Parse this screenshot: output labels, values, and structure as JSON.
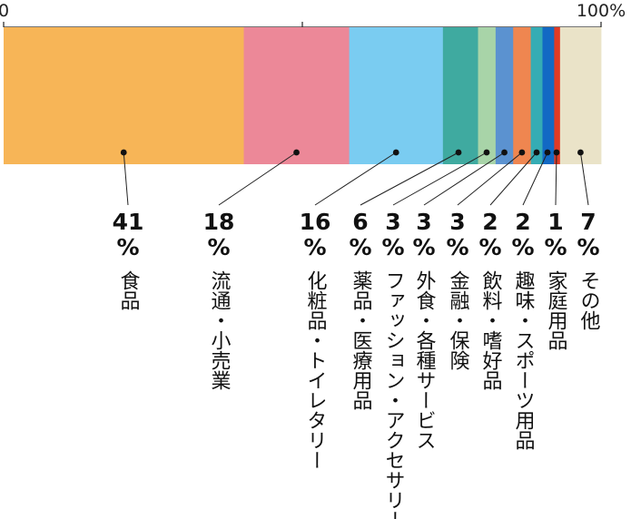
{
  "chart_data": {
    "type": "bar",
    "orientation": "horizontal-stacked-100",
    "axis": {
      "tick_labels": [
        "0",
        "100%"
      ],
      "range": [
        0,
        100
      ]
    },
    "segments": [
      {
        "label": "食品",
        "value": 41,
        "value_text": "41",
        "unit": "%",
        "color": "#F7B557"
      },
      {
        "label": "流通・小売業",
        "value": 18,
        "value_text": "18",
        "unit": "%",
        "color": "#EC8898"
      },
      {
        "label": "化粧品・トイレタリー",
        "value": 16,
        "value_text": "16",
        "unit": "%",
        "color": "#7ACCF1"
      },
      {
        "label": "薬品・医療用品",
        "value": 6,
        "value_text": "6",
        "unit": "%",
        "color": "#3FAAA0"
      },
      {
        "label": "ファッション・アクセサリー",
        "value": 3,
        "value_text": "3",
        "unit": "%",
        "color": "#A8D4A8"
      },
      {
        "label": "外食・各種サービス",
        "value": 3,
        "value_text": "3",
        "unit": "%",
        "color": "#5B92D0"
      },
      {
        "label": "金融・保険",
        "value": 3,
        "value_text": "3",
        "unit": "%",
        "color": "#EF8650"
      },
      {
        "label": "飲料・嗜好品",
        "value": 2,
        "value_text": "2",
        "unit": "%",
        "color": "#35ACB4"
      },
      {
        "label": "趣味・スポーツ用品",
        "value": 2,
        "value_text": "2",
        "unit": "%",
        "color": "#1269C4"
      },
      {
        "label": "家庭用品",
        "value": 1,
        "value_text": "1",
        "unit": "%",
        "color": "#E03A24"
      },
      {
        "label": "その他",
        "value": 7,
        "value_text": "7",
        "unit": "%",
        "color": "#EAE3C8"
      }
    ]
  }
}
